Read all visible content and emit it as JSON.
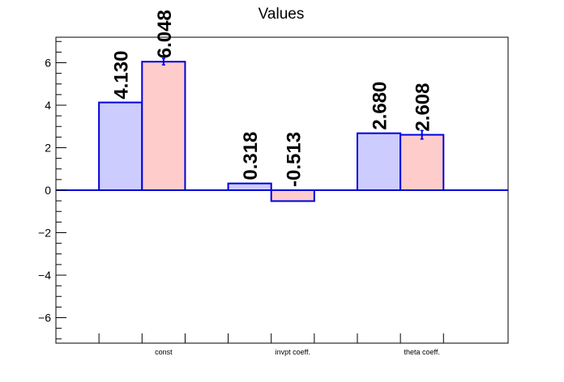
{
  "chart_data": {
    "type": "bar",
    "title": "Values",
    "categories": [
      "const",
      "invpt coeff.",
      "theta coeff."
    ],
    "series": [
      {
        "values": [
          4.13,
          0.318,
          2.68
        ],
        "errors": [
          0,
          0,
          0
        ],
        "labels": [
          "4.130",
          "0.318",
          "2.680"
        ],
        "fill": "#ccccff",
        "stroke": "#0000dd"
      },
      {
        "values": [
          6.048,
          -0.513,
          2.608
        ],
        "errors": [
          0.15,
          0,
          0.2
        ],
        "labels": [
          "6.048",
          "-0.513",
          "2.608"
        ],
        "fill": "#ffcccc",
        "stroke": "#0000dd"
      }
    ],
    "ylim": [
      -7.2,
      7.2
    ],
    "yticks": [
      -6,
      -4,
      -2,
      0,
      2,
      4,
      6
    ],
    "ytick_labels": [
      "−6",
      "−4",
      "−2",
      "0",
      "2",
      "4",
      "6"
    ],
    "grid": false,
    "xlabel": "",
    "ylabel": ""
  }
}
